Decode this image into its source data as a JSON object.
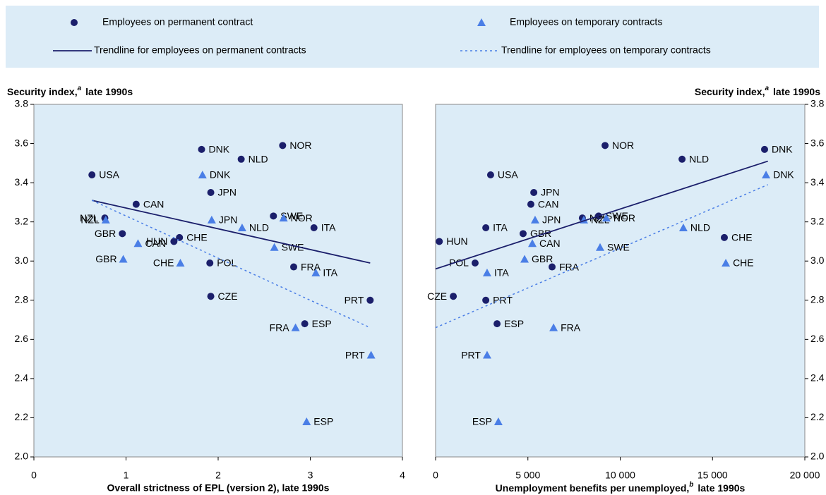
{
  "chart_data": [
    {
      "type": "scatter",
      "x_label": "Overall strictness of EPL (version 2), late 1990s",
      "y_label": [
        "Security index,",
        "a",
        "late 1990s"
      ],
      "y_axis_side": "left",
      "xlim": [
        0,
        4
      ],
      "xticks": [
        0,
        1,
        2,
        3,
        4
      ],
      "ylim": [
        2,
        3.8
      ],
      "yticks": [
        {
          "value": 2,
          "label": "2.0"
        },
        2.2,
        2.4,
        2.6,
        2.8,
        {
          "value": 3,
          "label": "3.0"
        },
        3.2,
        3.4,
        3.6,
        3.8
      ],
      "series": [
        {
          "name": "Employees on permanent contract",
          "color": "#1b1f6b",
          "marker": "circle",
          "labels": [
            "USA",
            "NZL",
            "GBR",
            "CAN",
            "HUN",
            "CHE",
            "POL",
            "CZE",
            "DNK",
            "JPN",
            "NLD",
            "NOR",
            "SWE",
            "FRA",
            "ESP",
            "ITA",
            "PRT"
          ],
          "x": [
            0.63,
            0.77,
            0.96,
            1.11,
            1.52,
            1.58,
            1.91,
            1.92,
            1.82,
            1.92,
            2.25,
            2.7,
            2.6,
            2.82,
            2.94,
            3.04,
            3.65
          ],
          "values": [
            3.44,
            3.22,
            3.14,
            3.29,
            3.1,
            3.12,
            2.99,
            2.82,
            3.57,
            3.35,
            3.52,
            3.59,
            3.23,
            2.97,
            2.68,
            3.17,
            2.8
          ]
        },
        {
          "name": "Employees on temporary contracts",
          "color": "#4a7ee6",
          "marker": "triangle",
          "labels": [
            "NZL",
            "GBR",
            "CAN",
            "CHE",
            "DNK",
            "JPN",
            "NLD",
            "NOR",
            "SWE",
            "FRA",
            "ESP",
            "ITA",
            "PRT"
          ],
          "x": [
            0.78,
            0.97,
            1.13,
            1.59,
            1.83,
            1.93,
            2.26,
            2.71,
            2.61,
            2.84,
            2.96,
            3.06,
            3.66
          ],
          "values": [
            3.21,
            3.01,
            3.09,
            2.99,
            3.44,
            3.21,
            3.17,
            3.22,
            3.07,
            2.66,
            2.18,
            2.94,
            2.52
          ]
        },
        {
          "name": "Trendline for employees on permanent contracts",
          "color": "#1b1f6b",
          "line": "solid",
          "x": [
            0.63,
            3.65
          ],
          "values": [
            3.31,
            2.99
          ]
        },
        {
          "name": "Trendline for employees on temporary contracts",
          "color": "#4a7ee6",
          "line": "dotted",
          "x": [
            0.63,
            3.65
          ],
          "values": [
            3.31,
            2.66
          ]
        }
      ]
    },
    {
      "type": "scatter",
      "x_label": [
        "Unemployment benefits per unemployed,",
        "b",
        "late 1990s"
      ],
      "y_label": [
        "Security index,",
        "a",
        "late 1990s"
      ],
      "y_axis_side": "right",
      "xlim": [
        0,
        20000
      ],
      "xticks": [
        0,
        {
          "value": 5000,
          "label": "5 000"
        },
        {
          "value": 10000,
          "label": "10 000"
        },
        {
          "value": 15000,
          "label": "15 000"
        },
        {
          "value": 20000,
          "label": "20 000"
        }
      ],
      "ylim": [
        2,
        3.8
      ],
      "yticks": [
        {
          "value": 2,
          "label": "2.0"
        },
        2.2,
        2.4,
        2.6,
        2.8,
        {
          "value": 3,
          "label": "3.0"
        },
        3.2,
        3.4,
        3.6,
        3.8
      ],
      "series": [
        {
          "color": "#1b1f6b",
          "marker": "circle",
          "labels": [
            "USA",
            "NZL",
            "GBR",
            "CAN",
            "HUN",
            "CHE",
            "POL",
            "CZE",
            "DNK",
            "JPN",
            "NLD",
            "NOR",
            "SWE",
            "FRA",
            "ESP",
            "ITA",
            "PRT"
          ],
          "x": [
            2980,
            7950,
            4740,
            5160,
            200,
            15640,
            2140,
            960,
            17820,
            5320,
            13350,
            9180,
            8830,
            6310,
            3330,
            2720,
            2720
          ],
          "values": [
            3.44,
            3.22,
            3.14,
            3.29,
            3.1,
            3.12,
            2.99,
            2.82,
            3.57,
            3.35,
            3.52,
            3.59,
            3.23,
            2.97,
            2.68,
            3.17,
            2.8
          ]
        },
        {
          "color": "#4a7ee6",
          "marker": "triangle",
          "labels": [
            "NZL",
            "GBR",
            "CAN",
            "CHE",
            "DNK",
            "JPN",
            "NLD",
            "NOR",
            "SWE",
            "FRA",
            "ESP",
            "ITA",
            "PRT"
          ],
          "x": [
            8030,
            4820,
            5240,
            15720,
            17900,
            5390,
            13420,
            9250,
            8910,
            6390,
            3400,
            2790,
            2790
          ],
          "values": [
            3.21,
            3.01,
            3.09,
            2.99,
            3.44,
            3.21,
            3.17,
            3.22,
            3.07,
            2.66,
            2.18,
            2.94,
            2.52
          ]
        },
        {
          "color": "#1b1f6b",
          "line": "solid",
          "x": [
            0,
            18000
          ],
          "values": [
            2.96,
            3.51
          ]
        },
        {
          "color": "#4a7ee6",
          "line": "dotted",
          "x": [
            0,
            18000
          ],
          "values": [
            2.66,
            3.39
          ]
        }
      ]
    }
  ]
}
